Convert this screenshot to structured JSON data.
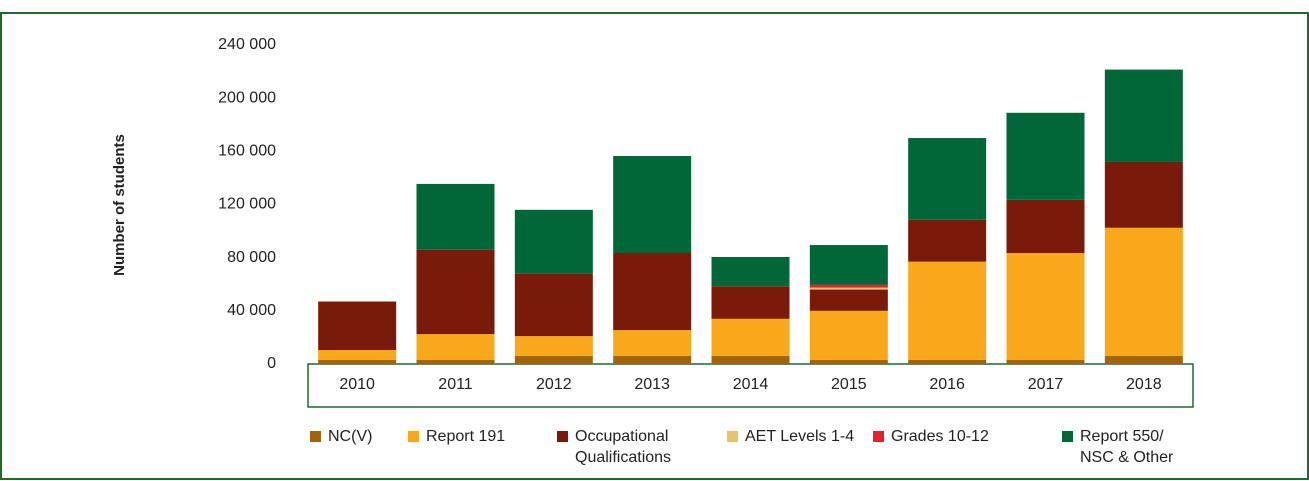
{
  "chart_data": {
    "type": "stacked_bar",
    "y_label": "Number of students",
    "categories": [
      "2010",
      "2011",
      "2012",
      "2013",
      "2014",
      "2015",
      "2016",
      "2017",
      "2018"
    ],
    "series": [
      {
        "name": "NC(V)",
        "color": "#a0640f",
        "values": [
          3000,
          3000,
          6000,
          6000,
          6000,
          3000,
          3000,
          3000,
          6000
        ]
      },
      {
        "name": "Report 191",
        "color": "#f9a81b",
        "values": [
          7500,
          19500,
          15000,
          19500,
          28000,
          37000,
          74000,
          80500,
          96500
        ]
      },
      {
        "name": "Occupational Qualifications",
        "color": "#7a1a0a",
        "values": [
          36500,
          63500,
          47000,
          58000,
          24500,
          16000,
          31500,
          40000,
          49500
        ]
      },
      {
        "name": "AET Levels 1-4",
        "color": "#e3c46a",
        "values": [
          0,
          0,
          0,
          0,
          0,
          1500,
          0,
          0,
          0
        ]
      },
      {
        "name": "Grades 10-12",
        "color": "#e8202a",
        "values": [
          0,
          0,
          0,
          0,
          0,
          2000,
          0,
          0,
          0
        ]
      },
      {
        "name": "Report 550/ NSC & Other",
        "color": "#006838",
        "values": [
          0,
          49500,
          48000,
          73000,
          22000,
          30000,
          61500,
          65500,
          69500
        ]
      }
    ],
    "ylim": [
      0,
      240000
    ],
    "yticks": [
      0,
      {
        "value": 40000,
        "label": "40 000"
      },
      {
        "value": 80000,
        "label": "80 000"
      },
      {
        "value": 120000,
        "label": "120 000"
      },
      {
        "value": 160000,
        "label": "160 000"
      },
      {
        "value": 200000,
        "label": "200 000"
      },
      {
        "value": 240000,
        "label": "240 000"
      }
    ],
    "grid": false
  }
}
